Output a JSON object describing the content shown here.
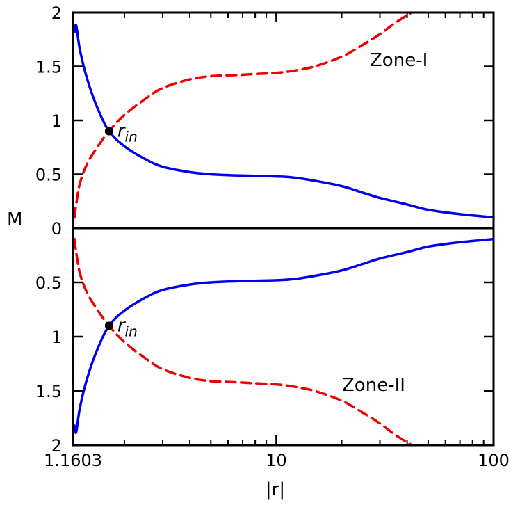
{
  "chart_data": {
    "type": "line",
    "title": "",
    "xlabel": "|r|",
    "ylabel": "M",
    "x_scale": "log",
    "xlim": [
      1.1603,
      100
    ],
    "x_ticks": [
      {
        "value": 1.1603,
        "label": "1.1603"
      },
      {
        "value": 10,
        "label": "10"
      },
      {
        "value": 100,
        "label": "100"
      }
    ],
    "panels": [
      {
        "name": "Zone-I",
        "label": "Zone-I",
        "y_direction": "up",
        "ylim": [
          0,
          2
        ],
        "y_ticks": [
          {
            "value": 0,
            "label": "0"
          },
          {
            "value": 0.5,
            "label": "0.5"
          },
          {
            "value": 1,
            "label": "1"
          },
          {
            "value": 1.5,
            "label": "1.5"
          },
          {
            "value": 2,
            "label": "2"
          }
        ],
        "sonic_point": {
          "x": 1.7,
          "y": 0.9,
          "label": "r",
          "label_sub": "in"
        },
        "series": [
          {
            "name": "blue-branch",
            "color": "#0000ee",
            "style": "solid",
            "x": [
              1.18,
              1.2,
              1.25,
              1.35,
              1.5,
              1.7,
              2.0,
              2.5,
              3.0,
              4.0,
              5.0,
              6.5,
              8.0,
              10.0,
              12.0,
              15.0,
              20.0,
              25.0,
              30.0,
              40.0,
              50.0,
              70.0,
              100.0
            ],
            "y": [
              1.82,
              1.88,
              1.65,
              1.38,
              1.12,
              0.9,
              0.76,
              0.64,
              0.57,
              0.52,
              0.5,
              0.49,
              0.485,
              0.48,
              0.47,
              0.44,
              0.39,
              0.33,
              0.28,
              0.22,
              0.17,
              0.13,
              0.1
            ]
          },
          {
            "name": "red-branch",
            "color": "#ee0000",
            "style": "dashed",
            "x": [
              1.18,
              1.2,
              1.25,
              1.35,
              1.5,
              1.7,
              2.0,
              2.5,
              3.0,
              4.0,
              5.0,
              6.5,
              8.0,
              10.0,
              12.0,
              15.0,
              20.0,
              25.0,
              30.0,
              35.0,
              42.0
            ],
            "y": [
              0.1,
              0.22,
              0.42,
              0.6,
              0.75,
              0.9,
              1.05,
              1.2,
              1.3,
              1.38,
              1.41,
              1.42,
              1.43,
              1.44,
              1.46,
              1.5,
              1.59,
              1.7,
              1.8,
              1.9,
              2.0
            ]
          }
        ]
      },
      {
        "name": "Zone-II",
        "label": "Zone-II",
        "y_direction": "down",
        "ylim": [
          0,
          2
        ],
        "y_ticks": [
          {
            "value": 0,
            "label": ""
          },
          {
            "value": 0.5,
            "label": "0.5"
          },
          {
            "value": 1,
            "label": "1"
          },
          {
            "value": 1.5,
            "label": "1.5"
          },
          {
            "value": 2,
            "label": "2"
          }
        ],
        "sonic_point": {
          "x": 1.7,
          "y": 0.9,
          "label": "r",
          "label_sub": "in"
        },
        "series": [
          {
            "name": "blue-branch",
            "color": "#0000ee",
            "style": "solid",
            "x": [
              1.18,
              1.2,
              1.25,
              1.35,
              1.5,
              1.7,
              2.0,
              2.5,
              3.0,
              4.0,
              5.0,
              6.5,
              8.0,
              10.0,
              12.0,
              15.0,
              20.0,
              25.0,
              30.0,
              40.0,
              50.0,
              70.0,
              100.0
            ],
            "y": [
              1.82,
              1.88,
              1.65,
              1.38,
              1.12,
              0.9,
              0.76,
              0.64,
              0.57,
              0.52,
              0.5,
              0.49,
              0.485,
              0.48,
              0.47,
              0.44,
              0.39,
              0.33,
              0.28,
              0.22,
              0.17,
              0.13,
              0.1
            ]
          },
          {
            "name": "red-branch",
            "color": "#ee0000",
            "style": "dashed",
            "x": [
              1.18,
              1.2,
              1.25,
              1.35,
              1.5,
              1.7,
              2.0,
              2.5,
              3.0,
              4.0,
              5.0,
              6.5,
              8.0,
              10.0,
              12.0,
              15.0,
              20.0,
              25.0,
              30.0,
              35.0,
              42.0
            ],
            "y": [
              0.1,
              0.22,
              0.42,
              0.6,
              0.75,
              0.9,
              1.05,
              1.2,
              1.3,
              1.38,
              1.41,
              1.42,
              1.43,
              1.44,
              1.46,
              1.5,
              1.59,
              1.7,
              1.8,
              1.9,
              2.0
            ]
          }
        ]
      }
    ],
    "vertical_marker": {
      "x": 1.1603,
      "color": "#008000",
      "style": "dotted"
    }
  }
}
